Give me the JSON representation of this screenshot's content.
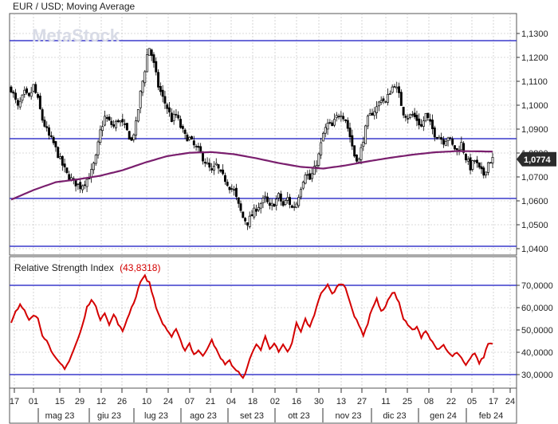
{
  "price_title": "EUR / USD; Moving Average",
  "watermark": "MetaStock",
  "rsi_title": "Relative Strength Index",
  "rsi_value_label": "(43,8318)",
  "current_price_label": "1,0774",
  "chart_data": [
    {
      "type": "candlestick",
      "title": "EUR / USD; Moving Average",
      "ylim": [
        1.04,
        1.13
      ],
      "yticks": [
        "1,1300",
        "1,1200",
        "1,1100",
        "1,1000",
        "1,0900",
        "1,0800",
        "1,0700",
        "1,0600",
        "1,0500",
        "1,0400"
      ],
      "horizontal_lines": [
        1.127,
        1.086,
        1.061,
        1.041
      ],
      "current_value": 1.0774,
      "close_profile": [
        [
          0,
          1.107
        ],
        [
          3,
          1.099
        ],
        [
          6,
          1.105
        ],
        [
          8,
          1.103
        ],
        [
          10,
          1.108
        ],
        [
          12,
          1.102
        ],
        [
          14,
          1.094
        ],
        [
          17,
          1.087
        ],
        [
          19,
          1.084
        ],
        [
          22,
          1.077
        ],
        [
          25,
          1.071
        ],
        [
          28,
          1.068
        ],
        [
          31,
          1.066
        ],
        [
          34,
          1.069
        ],
        [
          36,
          1.072
        ],
        [
          38,
          1.078
        ],
        [
          40,
          1.089
        ],
        [
          42,
          1.095
        ],
        [
          44,
          1.093
        ],
        [
          46,
          1.091
        ],
        [
          48,
          1.094
        ],
        [
          50,
          1.092
        ],
        [
          52,
          1.089
        ],
        [
          54,
          1.085
        ],
        [
          56,
          1.092
        ],
        [
          58,
          1.105
        ],
        [
          60,
          1.115
        ],
        [
          61,
          1.121
        ],
        [
          62,
          1.124
        ],
        [
          63,
          1.121
        ],
        [
          64,
          1.117
        ],
        [
          66,
          1.108
        ],
        [
          68,
          1.103
        ],
        [
          70,
          1.099
        ],
        [
          72,
          1.094
        ],
        [
          74,
          1.096
        ],
        [
          76,
          1.091
        ],
        [
          78,
          1.087
        ],
        [
          80,
          1.086
        ],
        [
          82,
          1.083
        ],
        [
          84,
          1.081
        ],
        [
          86,
          1.078
        ],
        [
          88,
          1.075
        ],
        [
          90,
          1.072
        ],
        [
          92,
          1.075
        ],
        [
          94,
          1.071
        ],
        [
          96,
          1.069
        ],
        [
          98,
          1.066
        ],
        [
          100,
          1.064
        ],
        [
          102,
          1.058
        ],
        [
          104,
          1.053
        ],
        [
          106,
          1.051
        ],
        [
          108,
          1.054
        ],
        [
          110,
          1.057
        ],
        [
          112,
          1.059
        ],
        [
          114,
          1.061
        ],
        [
          116,
          1.057
        ],
        [
          118,
          1.059
        ],
        [
          120,
          1.062
        ],
        [
          122,
          1.058
        ],
        [
          124,
          1.061
        ],
        [
          126,
          1.057
        ],
        [
          128,
          1.059
        ],
        [
          130,
          1.066
        ],
        [
          132,
          1.072
        ],
        [
          134,
          1.069
        ],
        [
          136,
          1.073
        ],
        [
          138,
          1.079
        ],
        [
          140,
          1.088
        ],
        [
          142,
          1.092
        ],
        [
          144,
          1.091
        ],
        [
          146,
          1.095
        ],
        [
          148,
          1.097
        ],
        [
          150,
          1.094
        ],
        [
          152,
          1.087
        ],
        [
          154,
          1.079
        ],
        [
          156,
          1.077
        ],
        [
          158,
          1.086
        ],
        [
          160,
          1.094
        ],
        [
          162,
          1.097
        ],
        [
          164,
          1.099
        ],
        [
          166,
          1.103
        ],
        [
          168,
          1.101
        ],
        [
          170,
          1.106
        ],
        [
          172,
          1.109
        ],
        [
          174,
          1.104
        ],
        [
          176,
          1.097
        ],
        [
          178,
          1.095
        ],
        [
          180,
          1.096
        ],
        [
          182,
          1.094
        ],
        [
          184,
          1.091
        ],
        [
          186,
          1.096
        ],
        [
          188,
          1.092
        ],
        [
          190,
          1.088
        ],
        [
          192,
          1.087
        ],
        [
          194,
          1.085
        ],
        [
          196,
          1.087
        ],
        [
          198,
          1.083
        ],
        [
          200,
          1.081
        ],
        [
          202,
          1.084
        ],
        [
          204,
          1.078
        ],
        [
          206,
          1.074
        ],
        [
          208,
          1.077
        ],
        [
          210,
          1.073
        ],
        [
          212,
          1.071
        ],
        [
          214,
          1.076
        ],
        [
          216,
          1.0774
        ]
      ],
      "moving_average": [
        [
          0,
          1.0605
        ],
        [
          10,
          1.0645
        ],
        [
          20,
          1.0678
        ],
        [
          30,
          1.069
        ],
        [
          40,
          1.0705
        ],
        [
          50,
          1.0728
        ],
        [
          60,
          1.076
        ],
        [
          70,
          1.0787
        ],
        [
          80,
          1.0801
        ],
        [
          90,
          1.0804
        ],
        [
          100,
          1.0795
        ],
        [
          110,
          1.0778
        ],
        [
          120,
          1.0758
        ],
        [
          130,
          1.0742
        ],
        [
          140,
          1.0735
        ],
        [
          150,
          1.0748
        ],
        [
          160,
          1.0765
        ],
        [
          170,
          1.078
        ],
        [
          180,
          1.0793
        ],
        [
          190,
          1.0803
        ],
        [
          200,
          1.0808
        ],
        [
          210,
          1.0807
        ],
        [
          216,
          1.0806
        ]
      ]
    },
    {
      "type": "line",
      "title": "Relative Strength Index",
      "current_value": 43.8318,
      "ylim": [
        23,
        76
      ],
      "yticks": [
        "70,0000",
        "60,0000",
        "50,0000",
        "40,0000",
        "30,0000"
      ],
      "horizontal_lines": [
        70,
        30
      ],
      "values": [
        [
          0,
          53
        ],
        [
          2,
          58
        ],
        [
          4,
          61
        ],
        [
          6,
          59
        ],
        [
          8,
          55
        ],
        [
          10,
          57
        ],
        [
          12,
          55
        ],
        [
          14,
          48
        ],
        [
          16,
          45
        ],
        [
          18,
          40
        ],
        [
          20,
          37
        ],
        [
          22,
          35
        ],
        [
          24,
          33
        ],
        [
          26,
          36
        ],
        [
          28,
          41
        ],
        [
          30,
          46
        ],
        [
          32,
          52
        ],
        [
          34,
          60
        ],
        [
          36,
          64
        ],
        [
          38,
          60
        ],
        [
          40,
          55
        ],
        [
          42,
          58
        ],
        [
          44,
          52
        ],
        [
          46,
          57
        ],
        [
          48,
          53
        ],
        [
          50,
          49
        ],
        [
          52,
          55
        ],
        [
          54,
          60
        ],
        [
          56,
          65
        ],
        [
          58,
          72
        ],
        [
          60,
          74
        ],
        [
          62,
          71
        ],
        [
          64,
          64
        ],
        [
          66,
          57
        ],
        [
          68,
          53
        ],
        [
          70,
          50
        ],
        [
          72,
          47
        ],
        [
          74,
          50
        ],
        [
          76,
          45
        ],
        [
          78,
          41
        ],
        [
          80,
          44
        ],
        [
          82,
          39
        ],
        [
          84,
          41
        ],
        [
          86,
          38
        ],
        [
          88,
          42
        ],
        [
          90,
          46
        ],
        [
          92,
          41
        ],
        [
          94,
          37
        ],
        [
          96,
          35
        ],
        [
          98,
          36
        ],
        [
          100,
          33
        ],
        [
          102,
          31
        ],
        [
          104,
          28
        ],
        [
          106,
          34
        ],
        [
          108,
          39
        ],
        [
          110,
          44
        ],
        [
          112,
          41
        ],
        [
          114,
          47
        ],
        [
          116,
          42
        ],
        [
          118,
          44
        ],
        [
          120,
          40
        ],
        [
          122,
          43
        ],
        [
          124,
          40
        ],
        [
          126,
          44
        ],
        [
          128,
          53
        ],
        [
          130,
          49
        ],
        [
          132,
          55
        ],
        [
          134,
          51
        ],
        [
          136,
          57
        ],
        [
          138,
          64
        ],
        [
          140,
          68
        ],
        [
          142,
          70
        ],
        [
          144,
          66
        ],
        [
          146,
          69
        ],
        [
          148,
          71
        ],
        [
          150,
          69
        ],
        [
          152,
          63
        ],
        [
          154,
          56
        ],
        [
          156,
          52
        ],
        [
          158,
          48
        ],
        [
          160,
          53
        ],
        [
          162,
          60
        ],
        [
          164,
          64
        ],
        [
          166,
          58
        ],
        [
          168,
          61
        ],
        [
          170,
          65
        ],
        [
          172,
          67
        ],
        [
          174,
          62
        ],
        [
          176,
          55
        ],
        [
          178,
          52
        ],
        [
          180,
          50
        ],
        [
          182,
          51
        ],
        [
          184,
          47
        ],
        [
          186,
          50
        ],
        [
          188,
          46
        ],
        [
          190,
          43
        ],
        [
          192,
          41
        ],
        [
          194,
          43
        ],
        [
          196,
          40
        ],
        [
          198,
          38
        ],
        [
          200,
          40
        ],
        [
          202,
          37
        ],
        [
          204,
          34
        ],
        [
          206,
          37
        ],
        [
          208,
          40
        ],
        [
          210,
          35
        ],
        [
          212,
          38
        ],
        [
          214,
          44
        ],
        [
          216,
          43.8318
        ]
      ]
    }
  ],
  "x_axis": {
    "date_ticks": [
      "17",
      "01",
      "15",
      "29",
      "12",
      "26",
      "10",
      "24",
      "07",
      "21",
      "04",
      "18",
      "02",
      "16",
      "30",
      "13",
      "27",
      "11",
      "25",
      "08",
      "22",
      "05",
      "17",
      "24"
    ],
    "month_ticks": [
      "mag 23",
      "giu 23",
      "lug 23",
      "ago 23",
      "set 23",
      "ott 23",
      "nov 23",
      "dic 23",
      "gen 24",
      "feb 24"
    ]
  },
  "colors": {
    "candle": "#000000",
    "moving_average": "#7a1f6e",
    "horizontal_line": "#3a3acc",
    "rsi_line": "#d40000",
    "grid": "#b8b8b8",
    "current_label_bg": "#2b2b2b"
  }
}
